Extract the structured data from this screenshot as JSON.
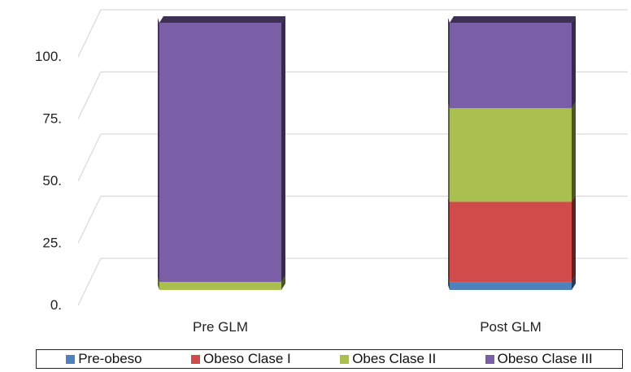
{
  "chart_data": {
    "type": "bar",
    "stacked": true,
    "three_d": true,
    "categories": [
      "Pre GLM",
      "Post GLM"
    ],
    "series": [
      {
        "name": "Pre-obeso",
        "color": "#4f81bd",
        "values": [
          0,
          3
        ]
      },
      {
        "name": "Obeso Clase I",
        "color": "#d14b4b",
        "values": [
          0,
          30
        ]
      },
      {
        "name": "Obes Clase II",
        "color": "#a9bf50",
        "values": [
          3,
          35
        ]
      },
      {
        "name": "Obeso Clase III",
        "color": "#7b5fa6",
        "values": [
          97,
          32
        ]
      }
    ],
    "y_ticks": [
      "0.",
      "25.",
      "50.",
      "75.",
      "100."
    ],
    "ylim": [
      0,
      100
    ],
    "grid": true,
    "legend_position": "bottom"
  }
}
